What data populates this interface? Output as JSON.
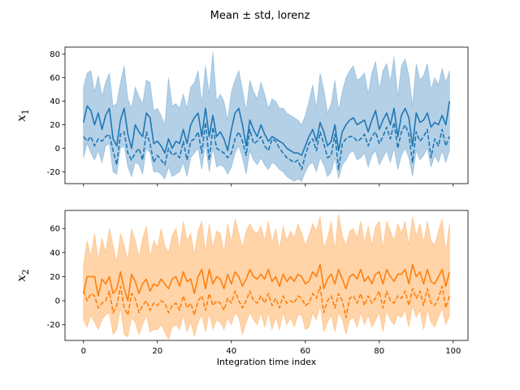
{
  "figure": {
    "title": "Mean ± std, lorenz"
  },
  "chart_data": [
    {
      "type": "area",
      "title": "",
      "xlabel": "",
      "ylabel": {
        "base": "x",
        "sub": "1"
      },
      "x_range": [
        0,
        99
      ],
      "xlim": [
        -5,
        104
      ],
      "ylim": [
        -30,
        86
      ],
      "xticks": [
        0,
        20,
        40,
        60,
        80,
        100
      ],
      "xtick_labels_visible": false,
      "yticks": [
        -20,
        0,
        20,
        40,
        60,
        80
      ],
      "color": "#1f77b4",
      "band_color": "#a6c8e3",
      "grid": false,
      "legend": "none",
      "series": [
        {
          "style": "solid",
          "role": "mean",
          "values": [
            22,
            36,
            32,
            20,
            30,
            16,
            28,
            34,
            8,
            2,
            24,
            34,
            12,
            0,
            20,
            14,
            10,
            30,
            26,
            4,
            6,
            2,
            -4,
            8,
            0,
            6,
            4,
            16,
            4,
            20,
            26,
            30,
            10,
            34,
            10,
            28,
            10,
            14,
            8,
            -2,
            16,
            30,
            34,
            20,
            2,
            24,
            16,
            10,
            20,
            12,
            6,
            10,
            8,
            6,
            4,
            0,
            -2,
            -4,
            -4,
            -6,
            2,
            10,
            16,
            6,
            22,
            14,
            2,
            6,
            20,
            -2,
            14,
            20,
            24,
            26,
            20,
            22,
            24,
            14,
            24,
            32,
            16,
            24,
            30,
            20,
            34,
            10,
            28,
            34,
            26,
            2,
            30,
            22,
            24,
            30,
            18,
            22,
            20,
            28,
            20,
            40
          ]
        },
        {
          "style": "dashed",
          "role": "median",
          "values": [
            10,
            6,
            10,
            2,
            8,
            6,
            10,
            12,
            -2,
            -14,
            12,
            14,
            -4,
            -10,
            -4,
            0,
            -10,
            14,
            4,
            -12,
            -6,
            -10,
            -14,
            0,
            -6,
            -4,
            -8,
            6,
            -10,
            6,
            8,
            14,
            -4,
            22,
            -10,
            18,
            0,
            -2,
            -4,
            -8,
            -4,
            8,
            14,
            6,
            -6,
            16,
            4,
            6,
            10,
            2,
            -2,
            8,
            6,
            0,
            -4,
            -8,
            -10,
            -12,
            -10,
            -18,
            -6,
            4,
            8,
            -2,
            14,
            4,
            -8,
            -6,
            12,
            -18,
            4,
            8,
            10,
            10,
            6,
            8,
            12,
            2,
            10,
            14,
            4,
            10,
            18,
            8,
            22,
            0,
            14,
            20,
            12,
            -12,
            14,
            6,
            10,
            16,
            -8,
            8,
            2,
            16,
            2,
            10
          ]
        }
      ],
      "band": {
        "upper": [
          52,
          64,
          66,
          48,
          62,
          44,
          56,
          64,
          36,
          38,
          56,
          70,
          42,
          34,
          52,
          44,
          38,
          58,
          56,
          32,
          34,
          28,
          20,
          60,
          36,
          38,
          34,
          46,
          34,
          52,
          56,
          66,
          38,
          70,
          46,
          82,
          40,
          46,
          40,
          24,
          48,
          58,
          66,
          50,
          32,
          58,
          48,
          42,
          56,
          46,
          34,
          42,
          40,
          34,
          34,
          30,
          28,
          26,
          24,
          20,
          28,
          40,
          54,
          34,
          64,
          50,
          30,
          38,
          58,
          32,
          48,
          60,
          66,
          70,
          58,
          60,
          64,
          46,
          64,
          74,
          50,
          66,
          72,
          56,
          78,
          44,
          70,
          76,
          62,
          36,
          72,
          58,
          62,
          72,
          50,
          60,
          54,
          68,
          56,
          66
        ],
        "lower": [
          -8,
          4,
          -4,
          -10,
          -2,
          -12,
          2,
          4,
          -20,
          -22,
          0,
          2,
          -16,
          -24,
          -12,
          -14,
          -22,
          0,
          -4,
          -20,
          -20,
          -22,
          -26,
          -16,
          -24,
          -22,
          -20,
          -12,
          -24,
          -8,
          -4,
          0,
          -18,
          4,
          -20,
          0,
          -16,
          -14,
          -16,
          -22,
          -16,
          -4,
          2,
          -8,
          -22,
          -2,
          -10,
          -14,
          -8,
          -14,
          -18,
          -12,
          -14,
          -18,
          -20,
          -24,
          -26,
          -28,
          -26,
          -28,
          -20,
          -14,
          -12,
          -20,
          -8,
          -14,
          -24,
          -20,
          -8,
          -26,
          -14,
          -10,
          -4,
          -2,
          -10,
          -8,
          -4,
          -16,
          -6,
          -2,
          -14,
          -8,
          -2,
          -12,
          0,
          -18,
          -6,
          0,
          -8,
          -24,
          -2,
          -10,
          -6,
          0,
          -16,
          -6,
          -12,
          -2,
          -12,
          -2
        ]
      }
    },
    {
      "type": "area",
      "title": "",
      "xlabel": "Integration time index",
      "ylabel": {
        "base": "x",
        "sub": "2"
      },
      "x_range": [
        0,
        99
      ],
      "xlim": [
        -5,
        104
      ],
      "ylim": [
        -33,
        75
      ],
      "xticks": [
        0,
        20,
        40,
        60,
        80,
        100
      ],
      "xtick_labels_visible": true,
      "yticks": [
        -20,
        0,
        20,
        40,
        60
      ],
      "color": "#ff7f0e",
      "band_color": "#ffcc99",
      "grid": false,
      "legend": "none",
      "series": [
        {
          "style": "solid",
          "role": "mean",
          "values": [
            6,
            20,
            20,
            20,
            4,
            18,
            14,
            20,
            6,
            10,
            24,
            10,
            0,
            22,
            16,
            6,
            14,
            18,
            8,
            14,
            12,
            18,
            14,
            10,
            18,
            20,
            12,
            24,
            16,
            18,
            6,
            20,
            26,
            10,
            26,
            14,
            20,
            18,
            10,
            22,
            14,
            24,
            20,
            12,
            18,
            26,
            20,
            18,
            22,
            18,
            26,
            16,
            20,
            12,
            22,
            16,
            20,
            16,
            22,
            20,
            14,
            16,
            24,
            20,
            30,
            10,
            18,
            22,
            14,
            26,
            18,
            10,
            20,
            22,
            18,
            26,
            16,
            20,
            14,
            22,
            24,
            14,
            26,
            20,
            16,
            22,
            22,
            26,
            14,
            30,
            20,
            24,
            14,
            26,
            16,
            14,
            20,
            26,
            12,
            24
          ]
        },
        {
          "style": "dashed",
          "role": "median",
          "values": [
            8,
            0,
            6,
            4,
            -6,
            -2,
            0,
            8,
            -10,
            -4,
            12,
            -6,
            -12,
            6,
            2,
            -10,
            -4,
            0,
            -8,
            -2,
            -4,
            0,
            -2,
            -10,
            -4,
            -2,
            -8,
            4,
            -6,
            -2,
            -12,
            0,
            4,
            -8,
            6,
            -4,
            0,
            -2,
            -8,
            2,
            -2,
            8,
            0,
            -6,
            0,
            8,
            0,
            -2,
            4,
            -2,
            6,
            -4,
            2,
            -6,
            4,
            -2,
            0,
            -2,
            4,
            2,
            -4,
            -2,
            6,
            2,
            12,
            -10,
            0,
            4,
            -6,
            6,
            0,
            -14,
            2,
            4,
            -2,
            6,
            -4,
            4,
            -2,
            2,
            8,
            -6,
            8,
            0,
            -2,
            4,
            2,
            8,
            -4,
            10,
            2,
            8,
            -4,
            10,
            -2,
            -4,
            2,
            12,
            -6,
            4
          ]
        }
      ],
      "band": {
        "upper": [
          30,
          50,
          36,
          56,
          34,
          52,
          40,
          60,
          46,
          32,
          56,
          46,
          34,
          60,
          50,
          36,
          52,
          62,
          36,
          50,
          44,
          60,
          46,
          40,
          54,
          60,
          42,
          66,
          50,
          56,
          38,
          58,
          66,
          40,
          64,
          44,
          58,
          56,
          40,
          64,
          48,
          68,
          56,
          44,
          58,
          64,
          58,
          56,
          62,
          50,
          66,
          48,
          60,
          42,
          62,
          50,
          58,
          52,
          64,
          56,
          46,
          54,
          64,
          58,
          70,
          44,
          52,
          66,
          42,
          72,
          54,
          46,
          58,
          60,
          52,
          66,
          48,
          62,
          46,
          62,
          66,
          44,
          66,
          58,
          50,
          64,
          56,
          66,
          46,
          70,
          54,
          64,
          48,
          66,
          50,
          46,
          58,
          68,
          40,
          64
        ],
        "lower": [
          -16,
          -22,
          -12,
          -18,
          -24,
          -16,
          -12,
          -10,
          -28,
          -24,
          -6,
          -28,
          -30,
          -14,
          -18,
          -28,
          -20,
          -12,
          -26,
          -24,
          -24,
          -20,
          -26,
          -32,
          -22,
          -20,
          -24,
          -12,
          -26,
          -18,
          -30,
          -18,
          -12,
          -26,
          -10,
          -24,
          -16,
          -18,
          -24,
          -14,
          -20,
          -10,
          -14,
          -28,
          -18,
          -10,
          -16,
          -20,
          -10,
          -22,
          -10,
          -24,
          -14,
          -24,
          -10,
          -20,
          -14,
          -22,
          -12,
          -12,
          -24,
          -22,
          -10,
          -16,
          -4,
          -26,
          -18,
          -12,
          -26,
          -10,
          -16,
          -28,
          -16,
          -14,
          -22,
          -10,
          -20,
          -12,
          -22,
          -16,
          -10,
          -26,
          -8,
          -16,
          -20,
          -12,
          -14,
          -8,
          -22,
          -4,
          -14,
          -8,
          -24,
          -8,
          -18,
          -22,
          -14,
          -6,
          -20,
          -12
        ]
      }
    }
  ]
}
